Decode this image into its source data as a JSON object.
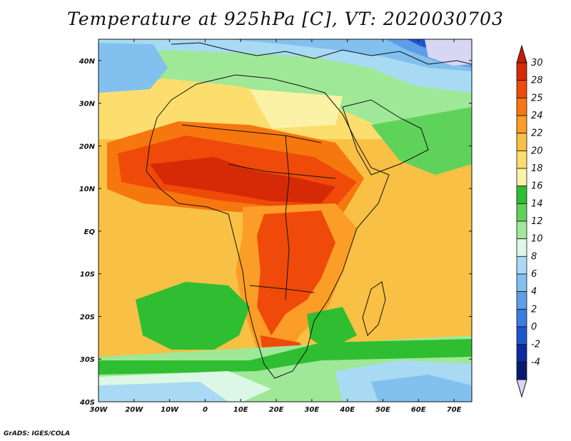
{
  "title": "Temperature at 925hPa [C], VT: 2020030703",
  "credit": "GrADS: IGES/COLA",
  "map": {
    "lon_range": [
      -30,
      75
    ],
    "lat_range": [
      -40,
      45
    ],
    "lon_ticks": [
      {
        "value": -30,
        "label": "30W"
      },
      {
        "value": -20,
        "label": "20W"
      },
      {
        "value": -10,
        "label": "10W"
      },
      {
        "value": 0,
        "label": "0"
      },
      {
        "value": 10,
        "label": "10E"
      },
      {
        "value": 20,
        "label": "20E"
      },
      {
        "value": 30,
        "label": "30E"
      },
      {
        "value": 40,
        "label": "40E"
      },
      {
        "value": 50,
        "label": "50E"
      },
      {
        "value": 60,
        "label": "60E"
      },
      {
        "value": 70,
        "label": "70E"
      }
    ],
    "lat_ticks": [
      {
        "value": 40,
        "label": "40N"
      },
      {
        "value": 30,
        "label": "30N"
      },
      {
        "value": 20,
        "label": "20N"
      },
      {
        "value": 10,
        "label": "10N"
      },
      {
        "value": 0,
        "label": "EQ"
      },
      {
        "value": -10,
        "label": "10S"
      },
      {
        "value": -20,
        "label": "20S"
      },
      {
        "value": -30,
        "label": "30S"
      },
      {
        "value": -40,
        "label": "40S"
      }
    ]
  },
  "colorbar": {
    "levels": [
      "30",
      "28",
      "25",
      "24",
      "22",
      "20",
      "18",
      "16",
      "14",
      "12",
      "10",
      "8",
      "6",
      "4",
      "2",
      "0",
      "-2",
      "-4"
    ],
    "colors_top_to_bottom": [
      "#d62a06",
      "#ef4a0a",
      "#f7770f",
      "#fb9d27",
      "#f8c044",
      "#fbde6e",
      "#fbf2a6",
      "#2fbe31",
      "#5fd25a",
      "#9fe898",
      "#dcf7e6",
      "#a9daf4",
      "#82c0ef",
      "#5e9ee8",
      "#3b7ce0",
      "#1f55cf",
      "#0c2aa0",
      "#081a70"
    ],
    "over_color": "#c41e04",
    "under_color": "#d7d6f5"
  }
}
